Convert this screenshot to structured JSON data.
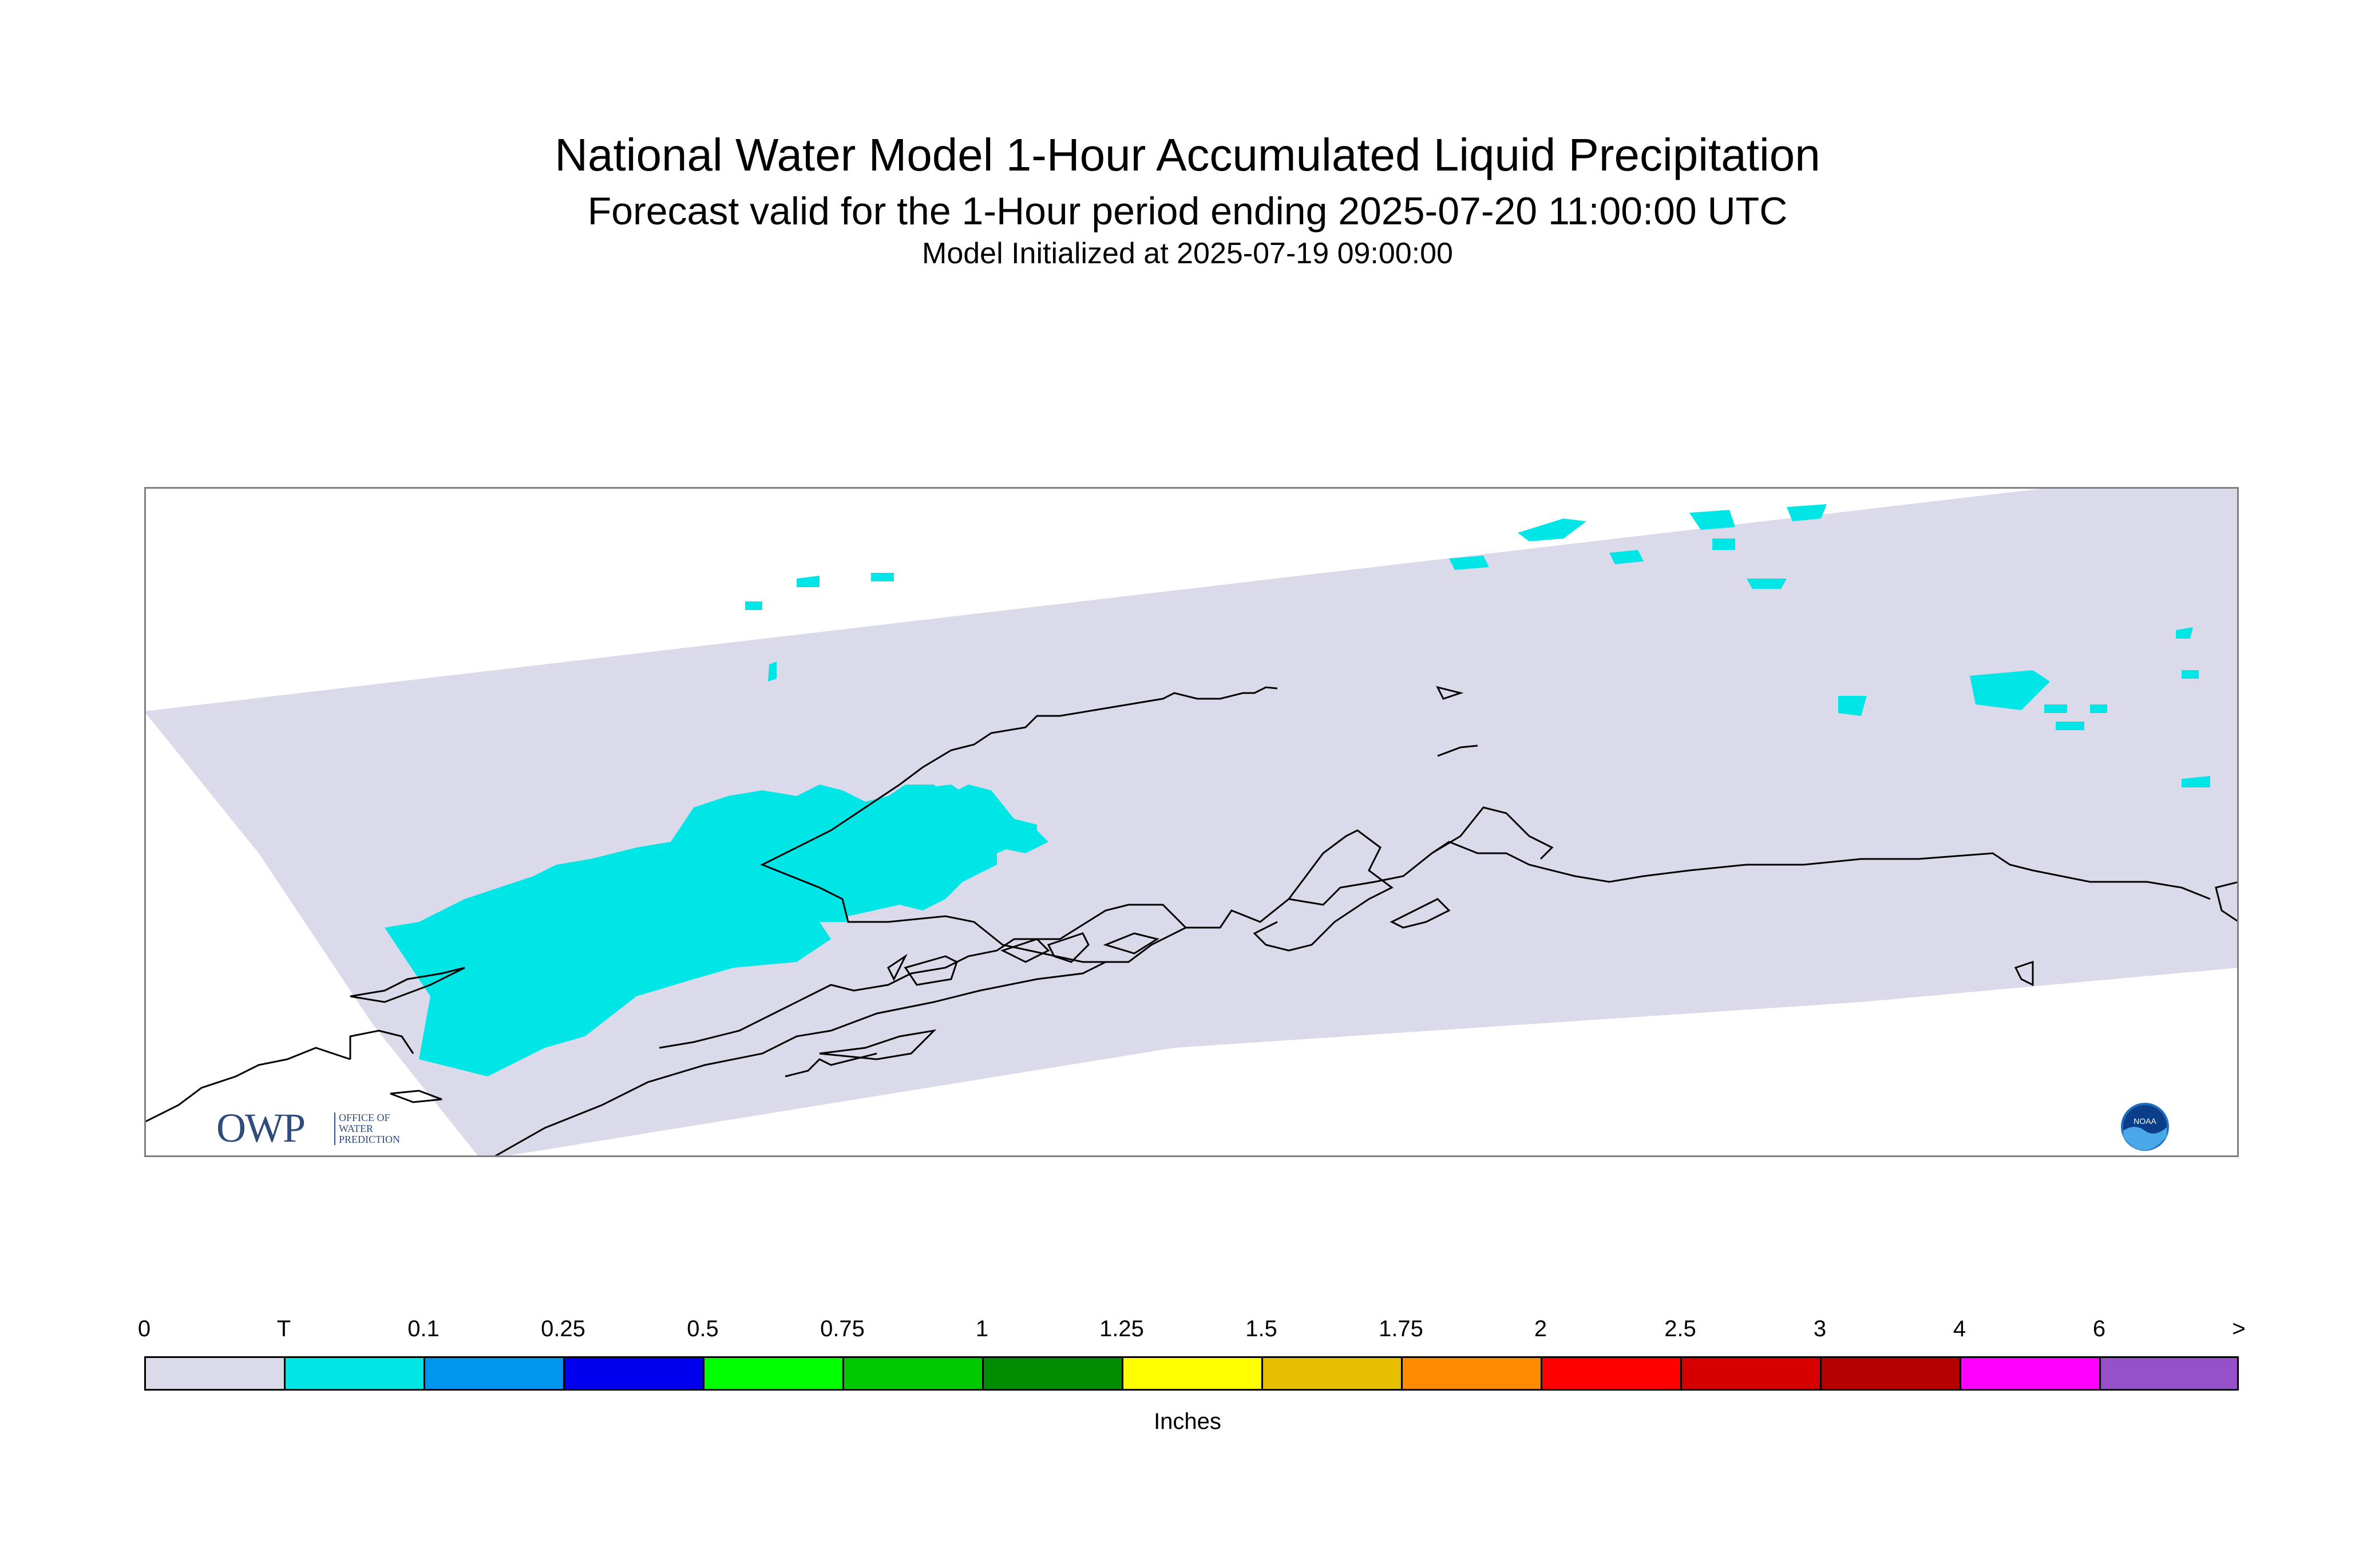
{
  "title": {
    "line1": "National Water Model 1-Hour Accumulated Liquid Precipitation",
    "line2": "Forecast valid for the 1-Hour period ending 2025-07-20 11:00:00 UTC",
    "line3": "Model Initialized at 2025-07-19 09:00:00"
  },
  "legend": {
    "units": "Inches",
    "labels": [
      "0",
      "T",
      "0.1",
      "0.25",
      "0.5",
      "0.75",
      "1",
      "1.25",
      "1.5",
      "1.75",
      "2",
      "2.5",
      "3",
      "4",
      "6",
      ">"
    ],
    "colors": [
      "#dadaeb",
      "#00e6e6",
      "#0096f0",
      "#0000ee",
      "#00ff00",
      "#00c800",
      "#008c00",
      "#ffff00",
      "#e6c000",
      "#ff8c00",
      "#ff0000",
      "#d70000",
      "#b40000",
      "#ff00ff",
      "#9650c8"
    ]
  },
  "map": {
    "domain_color": "#dadaeb",
    "precip_color": "#00e6e6",
    "coast_color": "#000000",
    "frame_color": "#808080"
  },
  "logos": {
    "owp": "OWP",
    "owp_sub": [
      "OFFICE OF",
      "WATER",
      "PREDICTION"
    ],
    "noaa": "NOAA"
  },
  "icons": [
    "owp-logo-icon",
    "noaa-logo-icon"
  ]
}
